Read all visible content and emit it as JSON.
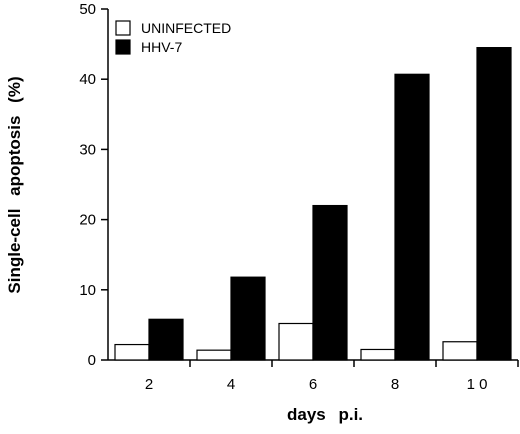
{
  "chart_data": {
    "type": "bar",
    "title": "",
    "xlabel": "days p.i.",
    "ylabel": "Single-cell apoptosis (%)",
    "categories": [
      "2",
      "4",
      "6",
      "8",
      "10"
    ],
    "x_tick_labels": [
      "2",
      "4",
      "6",
      "8",
      "1 0"
    ],
    "ylim": [
      0,
      50
    ],
    "y_ticks": [
      0,
      10,
      20,
      30,
      40,
      50
    ],
    "legend_position": "top-left",
    "series": [
      {
        "name": "UNINFECTED",
        "color": "#ffffff",
        "values": [
          2.2,
          1.4,
          5.2,
          1.5,
          2.6
        ]
      },
      {
        "name": "HHV-7",
        "color": "#000000",
        "values": [
          5.8,
          11.8,
          22.0,
          40.7,
          44.5
        ]
      }
    ]
  }
}
